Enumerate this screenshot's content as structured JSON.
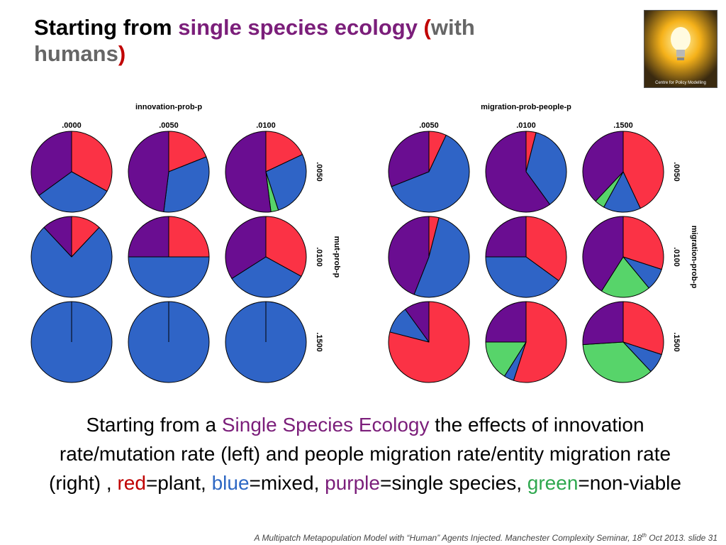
{
  "title": {
    "part1": "Starting from ",
    "part2": "single species ecology",
    "part3": " (",
    "part4": "with",
    "part5": "humans",
    "part6": ")"
  },
  "logo": {
    "text": "Centre for Policy Modelling"
  },
  "colors": {
    "red": "#fb3245",
    "blue": "#2f64c6",
    "purple": "#6a0d91",
    "green": "#57d46a"
  },
  "chart_data": [
    {
      "type": "pie",
      "title": "innovation-prob-p",
      "col_labels": [
        ".0000",
        ".0050",
        ".0100"
      ],
      "row_labels": [
        ".0050",
        ".0100",
        ".1500"
      ],
      "row_axis_title": "mut-prob-p",
      "slice_order": [
        "red",
        "blue",
        "green",
        "purple"
      ],
      "grid": [
        [
          {
            "red": 33,
            "blue": 32,
            "green": 0,
            "purple": 35
          },
          {
            "red": 19,
            "blue": 33,
            "green": 0,
            "purple": 48
          },
          {
            "red": 18,
            "blue": 27,
            "green": 3,
            "purple": 52
          }
        ],
        [
          {
            "red": 12,
            "blue": 76,
            "green": 0,
            "purple": 12
          },
          {
            "red": 25,
            "blue": 50,
            "green": 0,
            "purple": 25
          },
          {
            "red": 33,
            "blue": 33,
            "green": 0,
            "purple": 34
          }
        ],
        [
          {
            "red": 0,
            "blue": 100,
            "green": 0,
            "purple": 0
          },
          {
            "red": 0,
            "blue": 100,
            "green": 0,
            "purple": 0
          },
          {
            "red": 0,
            "blue": 100,
            "green": 0,
            "purple": 0
          }
        ]
      ]
    },
    {
      "type": "pie",
      "title": "migration-prob-people-p",
      "col_labels": [
        ".0050",
        ".0100",
        ".1500"
      ],
      "row_labels": [
        ".0050",
        ".0100",
        ".1500"
      ],
      "row_axis_title": "migration-prob-p",
      "slice_order": [
        "red",
        "blue",
        "green",
        "purple"
      ],
      "grid": [
        [
          {
            "red": 7,
            "blue": 62,
            "green": 0,
            "purple": 31
          },
          {
            "red": 4,
            "blue": 36,
            "green": 0,
            "purple": 60
          },
          {
            "red": 43,
            "blue": 15,
            "green": 4,
            "purple": 38
          }
        ],
        [
          {
            "red": 4,
            "blue": 52,
            "green": 0,
            "purple": 44
          },
          {
            "red": 35,
            "blue": 40,
            "green": 0,
            "purple": 25
          },
          {
            "red": 30,
            "blue": 9,
            "green": 20,
            "purple": 41
          }
        ],
        [
          {
            "red": 79,
            "blue": 11,
            "green": 0,
            "purple": 10
          },
          {
            "red": 55,
            "blue": 4,
            "green": 16,
            "purple": 25
          },
          {
            "red": 30,
            "blue": 8,
            "green": 36,
            "purple": 26
          }
        ]
      ]
    }
  ],
  "caption": {
    "t1": "Starting from a ",
    "t2": "Single Species Ecology",
    "t3": " the effects of innovation rate/mutation rate (left) and people migration rate/entity migration rate (right) , ",
    "t4": "red",
    "t5": "=plant, ",
    "t6": "blue",
    "t7": "=mixed, ",
    "t8": "purple",
    "t9": "=single species, ",
    "t10": "green",
    "t11": "=non-viable"
  },
  "footer": {
    "text1": "A Multipatch Metapopulation Model with “Human” Agents Injected. Manchester Complexity Seminar, 18",
    "sup": "th",
    "text2": " Oct 2013.  slide  31"
  }
}
